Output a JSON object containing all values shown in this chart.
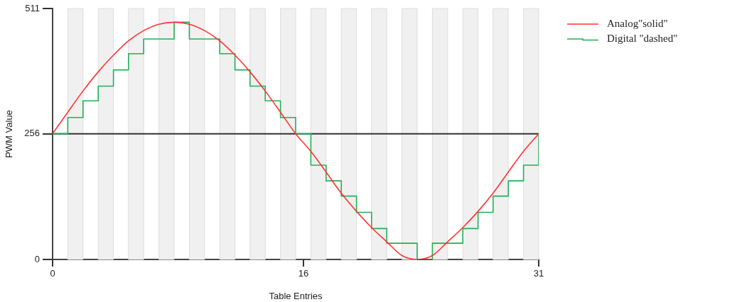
{
  "chart_data": {
    "type": "line",
    "xlabel": "Table Entries",
    "ylabel": "PWM Value",
    "x": [
      0,
      0.97,
      1.94,
      2.91,
      3.88,
      4.84,
      5.81,
      6.78,
      7.75,
      8.72,
      9.69,
      10.66,
      11.63,
      12.59,
      13.56,
      14.53,
      15.5,
      16.47,
      17.44,
      18.41,
      19.38,
      20.34,
      21.31,
      22.28,
      23.25,
      24.22,
      25.19,
      26.16,
      27.13,
      28.09,
      29.06,
      30.03,
      31
    ],
    "xlim": [
      0,
      31
    ],
    "xticks": [
      0,
      16,
      31
    ],
    "ylim": [
      0,
      511
    ],
    "yticks": [
      0,
      256,
      511
    ],
    "series": [
      {
        "name": "Analog\"solid\"",
        "color": "#ff3333",
        "values": [
          256,
          300,
          343,
          382,
          416,
          445,
          466,
          479,
          483,
          479,
          466,
          445,
          416,
          382,
          343,
          300,
          256,
          220,
          178,
          135,
          98,
          65,
          36,
          8,
          0,
          8,
          36,
          65,
          98,
          135,
          178,
          220,
          256
        ]
      },
      {
        "name": "Digital \"dashed\"",
        "type": "step",
        "color": "#22b055",
        "values": [
          256,
          289,
          323,
          353,
          386,
          419,
          449,
          449,
          483,
          449,
          449,
          419,
          386,
          353,
          323,
          289,
          256,
          192,
          160,
          129,
          96,
          63,
          33,
          33,
          0,
          33,
          33,
          63,
          96,
          129,
          160,
          192,
          256
        ]
      }
    ],
    "bands": [
      {
        "axis": "x",
        "from": 0.97,
        "to": 1.94,
        "color": "#f0f0f0"
      },
      {
        "axis": "x",
        "from": 2.91,
        "to": 3.88,
        "color": "#f0f0f0"
      },
      {
        "axis": "x",
        "from": 4.84,
        "to": 5.81,
        "color": "#f0f0f0"
      },
      {
        "axis": "x",
        "from": 6.78,
        "to": 7.75,
        "color": "#f0f0f0"
      },
      {
        "axis": "x",
        "from": 8.72,
        "to": 9.69,
        "color": "#f0f0f0"
      },
      {
        "axis": "x",
        "from": 10.66,
        "to": 11.63,
        "color": "#f0f0f0"
      },
      {
        "axis": "x",
        "from": 12.59,
        "to": 13.56,
        "color": "#f0f0f0"
      },
      {
        "axis": "x",
        "from": 14.53,
        "to": 15.5,
        "color": "#f0f0f0"
      },
      {
        "axis": "x",
        "from": 16.47,
        "to": 17.44,
        "color": "#f0f0f0"
      },
      {
        "axis": "x",
        "from": 18.41,
        "to": 19.38,
        "color": "#f0f0f0"
      },
      {
        "axis": "x",
        "from": 20.34,
        "to": 21.31,
        "color": "#f0f0f0"
      },
      {
        "axis": "x",
        "from": 22.28,
        "to": 23.25,
        "color": "#f0f0f0"
      },
      {
        "axis": "x",
        "from": 24.22,
        "to": 25.19,
        "color": "#f0f0f0"
      },
      {
        "axis": "x",
        "from": 26.16,
        "to": 27.13,
        "color": "#f0f0f0"
      },
      {
        "axis": "x",
        "from": 28.09,
        "to": 29.06,
        "color": "#f0f0f0"
      },
      {
        "axis": "x",
        "from": 30.03,
        "to": 31,
        "color": "#f0f0f0"
      }
    ],
    "ref_lines": [
      {
        "axis": "y",
        "value": 256,
        "color": "#333333"
      }
    ],
    "legend": "top right",
    "grid": false,
    "marker": "none"
  }
}
